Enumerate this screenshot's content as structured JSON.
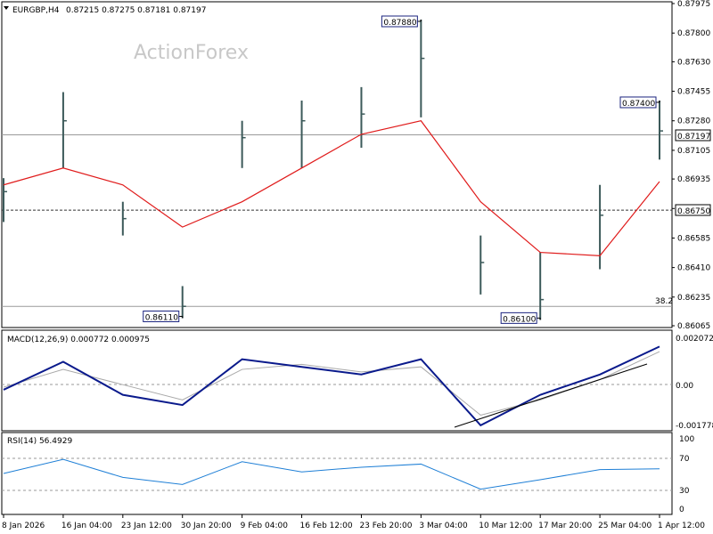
{
  "header": {
    "symbol": "EURGBP,H4",
    "ohlc": "0.87215 0.87275 0.87181 0.87197",
    "watermark": "ActionForex"
  },
  "colors": {
    "bars": "#3c5a5a",
    "moving_average": "#e01b1b",
    "macd_line": "#0a1a8c",
    "signal_line": "#a9a9a9",
    "trendline": "#000000",
    "gridline": "#9a9a9a"
  },
  "price_axis_ticks": [
    "0.87975",
    "0.87800",
    "0.87630",
    "0.87455",
    "0.87280",
    "0.87105",
    "0.86935",
    "0.86760",
    "0.86585",
    "0.86410",
    "0.86235",
    "0.86065"
  ],
  "annotations": {
    "current_price": "0.87197",
    "support_level": "0.86750",
    "fib_label": "38.2",
    "high_1": "0.87880",
    "high_2": "0.87400",
    "low_1": "0.86110",
    "low_2": "0.86100"
  },
  "macd_panel": {
    "title": "MACD(12,26,9) 0.000772 0.000975",
    "ticks": [
      "0.002072",
      "0.00",
      "-0.001778"
    ]
  },
  "rsi_panel": {
    "title": "RSI(14) 56.4929",
    "ticks": [
      "100",
      "70",
      "30",
      "0"
    ]
  },
  "date_labels": [
    "8 Jan 2026",
    "16 Jan 04:00",
    "23 Jan 12:00",
    "30 Jan 20:00",
    "9 Feb 04:00",
    "16 Feb 12:00",
    "23 Feb 20:00",
    "3 Mar 04:00",
    "10 Mar 12:00",
    "17 Mar 20:00",
    "25 Mar 04:00",
    "1 Apr 12:00"
  ],
  "chart_data": [
    {
      "type": "ohlc",
      "title": "EURGBP,H4",
      "x": [
        "8 Jan 2026",
        "16 Jan 04:00",
        "23 Jan 12:00",
        "30 Jan 20:00",
        "9 Feb 04:00",
        "16 Feb 12:00",
        "23 Feb 20:00",
        "3 Mar 04:00",
        "10 Mar 12:00",
        "17 Mar 20:00",
        "25 Mar 04:00",
        "1 Apr 12:00"
      ],
      "series": [
        {
          "name": "price_close",
          "values": [
            0.8686,
            0.8728,
            0.867,
            0.8618,
            0.8718,
            0.8728,
            0.8732,
            0.8765,
            0.8644,
            0.8622,
            0.8672,
            0.8722
          ]
        },
        {
          "name": "price_high",
          "values": [
            0.8694,
            0.8745,
            0.868,
            0.863,
            0.8728,
            0.874,
            0.8748,
            0.8788,
            0.866,
            0.865,
            0.869,
            0.874
          ]
        },
        {
          "name": "price_low",
          "values": [
            0.8668,
            0.87,
            0.866,
            0.8611,
            0.87,
            0.87,
            0.8712,
            0.873,
            0.8625,
            0.861,
            0.864,
            0.8705
          ]
        },
        {
          "name": "moving_average",
          "values": [
            0.869,
            0.87,
            0.869,
            0.8665,
            0.868,
            0.87,
            0.872,
            0.8728,
            0.868,
            0.865,
            0.8648,
            0.8692
          ]
        }
      ],
      "ylim": [
        0.86065,
        0.87975
      ],
      "horizontal_lines": [
        0.87197,
        0.8675,
        0.8618
      ],
      "markers": [
        {
          "label": "0.87880",
          "x": "3 Mar 04:00",
          "y": 0.8788
        },
        {
          "label": "0.87400",
          "x": "1 Apr 12:00",
          "y": 0.874
        },
        {
          "label": "0.86110",
          "x": "30 Jan 20:00",
          "y": 0.8611
        },
        {
          "label": "0.86100",
          "x": "17 Mar 20:00",
          "y": 0.861
        }
      ]
    },
    {
      "type": "line",
      "title": "MACD(12,26,9) 0.000772 0.000975",
      "x": [
        "8 Jan 2026",
        "16 Jan 04:00",
        "23 Jan 12:00",
        "30 Jan 20:00",
        "9 Feb 04:00",
        "16 Feb 12:00",
        "23 Feb 20:00",
        "3 Mar 04:00",
        "10 Mar 12:00",
        "17 Mar 20:00",
        "25 Mar 04:00",
        "1 Apr 12:00"
      ],
      "series": [
        {
          "name": "macd",
          "values": [
            -0.0002,
            0.0009,
            -0.0004,
            -0.0008,
            0.001,
            0.0007,
            0.0004,
            0.001,
            -0.0016,
            -0.0004,
            0.0004,
            0.0015
          ]
        },
        {
          "name": "signal",
          "values": [
            -0.0001,
            0.0006,
            0.0,
            -0.0006,
            0.0006,
            0.0008,
            0.0005,
            0.0007,
            -0.0012,
            -0.0006,
            0.0002,
            0.0013
          ]
        }
      ],
      "ylim": [
        -0.001778,
        0.002072
      ]
    },
    {
      "type": "line",
      "title": "RSI(14) 56.4929",
      "x": [
        "8 Jan 2026",
        "16 Jan 04:00",
        "23 Jan 12:00",
        "30 Jan 20:00",
        "9 Feb 04:00",
        "16 Feb 12:00",
        "23 Feb 20:00",
        "3 Mar 04:00",
        "10 Mar 12:00",
        "17 Mar 20:00",
        "25 Mar 04:00",
        "1 Apr 12:00"
      ],
      "series": [
        {
          "name": "rsi",
          "values": [
            50,
            68,
            45,
            36,
            65,
            52,
            58,
            62,
            30,
            42,
            55,
            56
          ]
        }
      ],
      "ylim": [
        0,
        100
      ],
      "horizontal_lines": [
        70,
        30
      ]
    }
  ]
}
